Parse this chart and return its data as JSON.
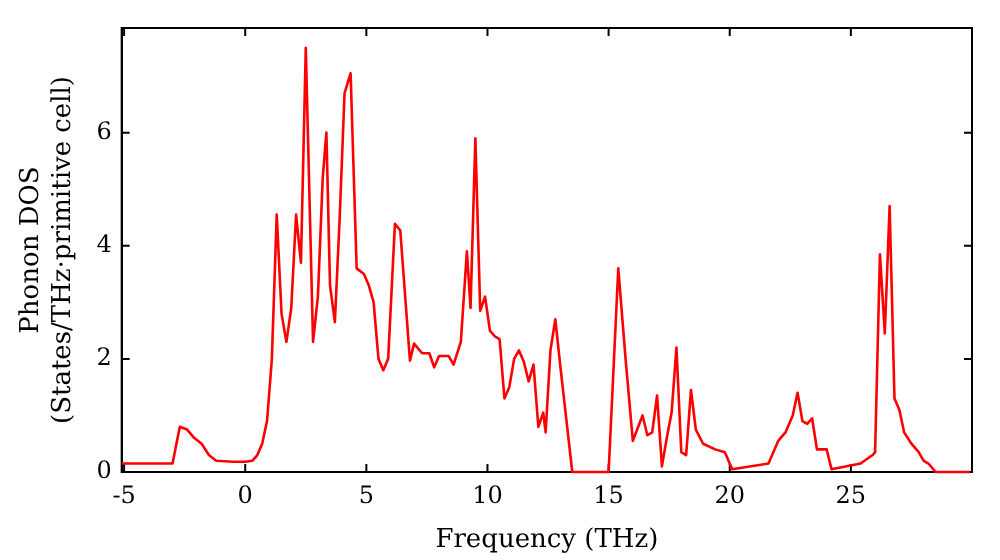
{
  "chart_data": {
    "type": "line",
    "xlabel": "Frequency (THz)",
    "ylabel": "Phonon DOS\n(States/THz·primitive cell)",
    "xlim": [
      -5.1,
      30
    ],
    "ylim": [
      0,
      7.85
    ],
    "xticks": [
      -5,
      0,
      5,
      10,
      15,
      20,
      25
    ],
    "yticks": [
      0,
      2,
      4,
      6
    ],
    "grid": false,
    "legend": false,
    "marker": "none",
    "line_style": "solid",
    "series": [
      {
        "color": "#ff0000",
        "x": [
          -5.1,
          -3.0,
          -2.7,
          -2.4,
          -2.1,
          -1.8,
          -1.5,
          -1.2,
          -0.5,
          0,
          0.3,
          0.5,
          0.7,
          0.9,
          1.1,
          1.3,
          1.5,
          1.7,
          1.9,
          2.1,
          2.3,
          2.5,
          2.8,
          3.0,
          3.2,
          3.35,
          3.5,
          3.7,
          3.9,
          4.1,
          4.35,
          4.6,
          4.9,
          5.1,
          5.3,
          5.5,
          5.7,
          5.9,
          6.18,
          6.4,
          6.8,
          6.97,
          7.3,
          7.6,
          7.8,
          8.0,
          8.4,
          8.6,
          8.9,
          9.15,
          9.3,
          9.5,
          9.7,
          9.9,
          10.1,
          10.3,
          10.5,
          10.7,
          10.9,
          11.1,
          11.3,
          11.5,
          11.7,
          11.9,
          12.1,
          12.3,
          12.4,
          12.6,
          12.8,
          13.0,
          13.5,
          15.0,
          15.4,
          15.7,
          16.0,
          16.4,
          16.6,
          16.8,
          17.0,
          17.2,
          17.4,
          17.6,
          17.8,
          18.0,
          18.2,
          18.4,
          18.6,
          18.9,
          19.4,
          19.8,
          20.1,
          21.6,
          22.0,
          22.3,
          22.6,
          22.8,
          23.0,
          23.2,
          23.4,
          23.6,
          24.0,
          24.2,
          25.4,
          25.9,
          26.0,
          26.2,
          26.4,
          26.6,
          26.8,
          27.0,
          27.2,
          27.5,
          27.8,
          28.0,
          28.2,
          28.5,
          29.9
        ],
        "values": [
          0.15,
          0.15,
          0.8,
          0.75,
          0.6,
          0.5,
          0.3,
          0.2,
          0.18,
          0.18,
          0.2,
          0.3,
          0.5,
          0.9,
          2.0,
          4.55,
          2.8,
          2.3,
          2.9,
          4.55,
          3.7,
          7.5,
          2.3,
          3.1,
          5.2,
          6.0,
          3.3,
          2.65,
          4.5,
          6.7,
          7.05,
          3.6,
          3.5,
          3.3,
          3.0,
          2.0,
          1.8,
          2.0,
          4.39,
          4.27,
          1.97,
          2.27,
          2.1,
          2.1,
          1.85,
          2.05,
          2.05,
          1.9,
          2.3,
          3.9,
          2.9,
          5.9,
          2.85,
          3.1,
          2.5,
          2.4,
          2.35,
          1.3,
          1.5,
          2.0,
          2.15,
          1.95,
          1.6,
          1.9,
          0.8,
          1.05,
          0.7,
          2.15,
          2.7,
          1.9,
          0,
          0,
          3.6,
          2.0,
          0.55,
          1.0,
          0.65,
          0.7,
          1.35,
          0.1,
          0.6,
          1.05,
          2.2,
          0.35,
          0.3,
          1.45,
          0.75,
          0.5,
          0.4,
          0.35,
          0.05,
          0.15,
          0.55,
          0.7,
          1.0,
          1.4,
          0.9,
          0.85,
          0.95,
          0.4,
          0.4,
          0.05,
          0.15,
          0.3,
          0.35,
          3.85,
          2.45,
          4.7,
          1.3,
          1.1,
          0.7,
          0.5,
          0.35,
          0.2,
          0.15,
          0,
          0
        ]
      }
    ]
  }
}
